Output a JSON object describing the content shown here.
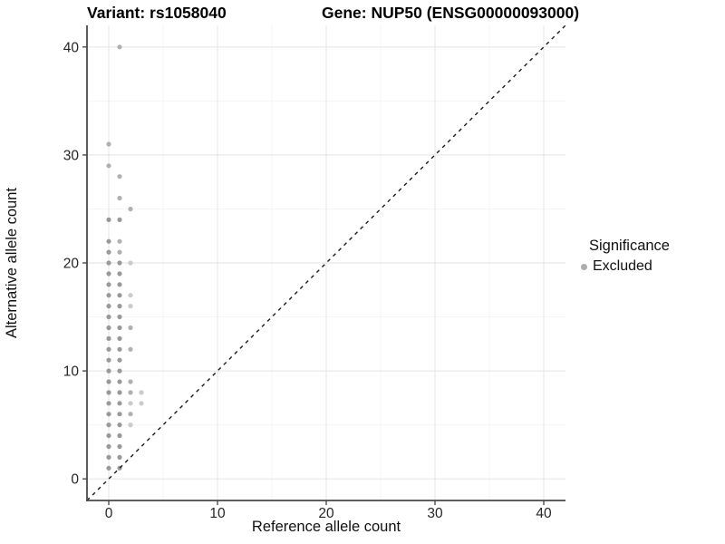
{
  "figure": {
    "titles": {
      "variant": "Variant: rs1058040",
      "gene": "Gene: NUP50 (ENSG00000093000)"
    }
  },
  "legend": {
    "title": "Significance",
    "items": [
      {
        "label": "Excluded",
        "shade": "medium"
      }
    ]
  },
  "chart_data": {
    "type": "scatter",
    "title": "Variant: rs1058040   |   Gene: NUP50 (ENSG00000093000)",
    "xlabel": "Reference allele count",
    "ylabel": "Alternative allele count",
    "xlim": [
      -2,
      42
    ],
    "ylim": [
      -2,
      42
    ],
    "x_ticks": [
      0,
      10,
      20,
      30,
      40
    ],
    "y_ticks": [
      0,
      10,
      20,
      30,
      40
    ],
    "x_minor_ticks": [
      5,
      15,
      25,
      35
    ],
    "y_minor_ticks": [
      5,
      15,
      25,
      35
    ],
    "grid": true,
    "legend_position": "right",
    "identity_line": {
      "equation": "y = x",
      "style": "dashed",
      "color": "#1a1a1a"
    },
    "series": [
      {
        "name": "Excluded",
        "points": [
          [
            1,
            40,
            "m"
          ],
          [
            0,
            31,
            "m"
          ],
          [
            0,
            29,
            "m"
          ],
          [
            1,
            28,
            "m"
          ],
          [
            1,
            26,
            "m"
          ],
          [
            2,
            25,
            "m"
          ],
          [
            0,
            24,
            "d"
          ],
          [
            1,
            24,
            "d"
          ],
          [
            0,
            22,
            "d"
          ],
          [
            1,
            22,
            "m"
          ],
          [
            0,
            21,
            "d"
          ],
          [
            1,
            21,
            "m"
          ],
          [
            0,
            20,
            "d"
          ],
          [
            1,
            20,
            "d"
          ],
          [
            2,
            20,
            "l"
          ],
          [
            0,
            19,
            "d"
          ],
          [
            1,
            19,
            "d"
          ],
          [
            0,
            18,
            "d"
          ],
          [
            1,
            18,
            "d"
          ],
          [
            0,
            17,
            "d"
          ],
          [
            1,
            17,
            "d"
          ],
          [
            2,
            17,
            "l"
          ],
          [
            0,
            16,
            "d"
          ],
          [
            1,
            16,
            "d"
          ],
          [
            2,
            16,
            "l"
          ],
          [
            0,
            15,
            "d"
          ],
          [
            1,
            15,
            "d"
          ],
          [
            0,
            14,
            "d"
          ],
          [
            1,
            14,
            "d"
          ],
          [
            2,
            14,
            "m"
          ],
          [
            0,
            13,
            "d"
          ],
          [
            1,
            13,
            "d"
          ],
          [
            0,
            12,
            "d"
          ],
          [
            1,
            12,
            "d"
          ],
          [
            2,
            12,
            "m"
          ],
          [
            0,
            11,
            "d"
          ],
          [
            1,
            11,
            "d"
          ],
          [
            0,
            10,
            "d"
          ],
          [
            1,
            10,
            "d"
          ],
          [
            0,
            9,
            "d"
          ],
          [
            1,
            9,
            "d"
          ],
          [
            2,
            9,
            "m"
          ],
          [
            0,
            8,
            "d"
          ],
          [
            1,
            8,
            "d"
          ],
          [
            2,
            8,
            "m"
          ],
          [
            3,
            8,
            "l"
          ],
          [
            0,
            7,
            "d"
          ],
          [
            1,
            7,
            "d"
          ],
          [
            2,
            7,
            "l"
          ],
          [
            3,
            7,
            "l"
          ],
          [
            0,
            6,
            "d"
          ],
          [
            1,
            6,
            "d"
          ],
          [
            2,
            6,
            "m"
          ],
          [
            0,
            5,
            "d"
          ],
          [
            1,
            5,
            "d"
          ],
          [
            2,
            5,
            "l"
          ],
          [
            0,
            4,
            "d"
          ],
          [
            1,
            4,
            "d"
          ],
          [
            0,
            3,
            "d"
          ],
          [
            1,
            3,
            "d"
          ],
          [
            0,
            2,
            "d"
          ],
          [
            1,
            2,
            "d"
          ],
          [
            0,
            1,
            "d"
          ],
          [
            1,
            1,
            "d"
          ]
        ]
      }
    ],
    "colors": {
      "point_dark": "#999999",
      "point_medium": "#b1b1b1",
      "point_light": "#cbcbcb",
      "grid_major": "#e8e8e8",
      "grid_minor": "#f4f4f4",
      "axis_line": "#4a4a4a",
      "tick_label": "#262626",
      "diagonal": "#1a1a1a"
    }
  }
}
